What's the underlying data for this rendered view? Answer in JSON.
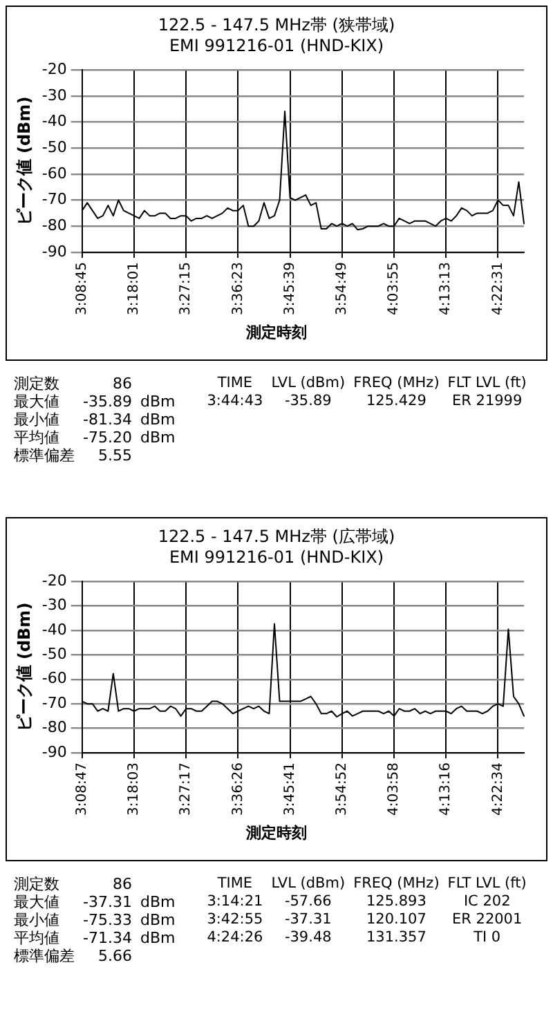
{
  "chart_data": [
    {
      "type": "line",
      "title": "122.5 - 147.5 MHz帯 (狭帯域)",
      "subtitle": "EMI 991216-01 (HND-KIX)",
      "xlabel": "測定時刻",
      "ylabel": "ピーク値 (dBm)",
      "categories": [
        "3:08:45",
        null,
        null,
        null,
        null,
        null,
        null,
        null,
        null,
        null,
        "3:18:01",
        null,
        null,
        null,
        null,
        null,
        null,
        null,
        null,
        null,
        "3:27:15",
        null,
        null,
        null,
        null,
        null,
        null,
        null,
        null,
        null,
        "3:36:23",
        null,
        null,
        null,
        null,
        null,
        null,
        null,
        null,
        null,
        "3:45:39",
        null,
        null,
        null,
        null,
        null,
        null,
        null,
        null,
        null,
        "3:54:49",
        null,
        null,
        null,
        null,
        null,
        null,
        null,
        null,
        null,
        "4:03:55",
        null,
        null,
        null,
        null,
        null,
        null,
        null,
        null,
        null,
        "4:13:13",
        null,
        null,
        null,
        null,
        null,
        null,
        null,
        null,
        null,
        "4:22:31",
        null,
        null,
        null,
        null,
        null
      ],
      "series": [
        {
          "color": "#000000",
          "values": [
            -74,
            -71,
            -74,
            -77,
            -76,
            -72,
            -76,
            -70,
            -74,
            -75,
            -76,
            -77,
            -74,
            -76,
            -76,
            -75,
            -75,
            -77,
            -77,
            -76,
            -76,
            -78,
            -77,
            -77,
            -76,
            -77,
            -76,
            -75,
            -73,
            -74,
            -74,
            -72,
            -80,
            -80,
            -78,
            -71,
            -77,
            -76,
            -70,
            -35.89,
            -69,
            -70,
            -69,
            -68,
            -72,
            -71,
            -81,
            -81,
            -79,
            -80,
            -79,
            -80,
            -79,
            -81.34,
            -81,
            -80,
            -80,
            -80,
            -79,
            -80,
            -80,
            -77,
            -78,
            -79,
            -78,
            -78,
            -78,
            -79,
            -80,
            -78,
            -77,
            -78,
            -76,
            -73,
            -74,
            -76,
            -75,
            -75,
            -75,
            -74,
            -70,
            -72,
            -72,
            -76,
            -63,
            -79
          ]
        }
      ],
      "ylim": [
        -90,
        -20
      ],
      "yticks": [
        -90,
        -80,
        -70,
        -60,
        -50,
        -40,
        -30,
        -20
      ],
      "grid": true,
      "legend": false,
      "marker": "none",
      "line_style": "solid",
      "annotations": [
        "測定数\t86",
        "最大値\t-35.89\tdBm",
        "最小値\t-81.34\tdBm",
        "平均値\t-75.20\tdBm",
        "標準偏差\t5.55",
        "TIME\tLVL (dBm)\tFREQ (MHz)\tFLT LVL (ft)",
        "3:44:43\t-35.89\t125.429\tER 21999"
      ]
    },
    {
      "type": "line",
      "title": "122.5 - 147.5 MHz帯 (広帯域)",
      "subtitle": "EMI 991216-01 (HND-KIX)",
      "xlabel": "測定時刻",
      "ylabel": "ピーク値 (dBm)",
      "categories": [
        "3:08:47",
        null,
        null,
        null,
        null,
        null,
        null,
        null,
        null,
        null,
        "3:18:03",
        null,
        null,
        null,
        null,
        null,
        null,
        null,
        null,
        null,
        "3:27:17",
        null,
        null,
        null,
        null,
        null,
        null,
        null,
        null,
        null,
        "3:36:26",
        null,
        null,
        null,
        null,
        null,
        null,
        null,
        null,
        null,
        "3:45:41",
        null,
        null,
        null,
        null,
        null,
        null,
        null,
        null,
        null,
        "3:54:52",
        null,
        null,
        null,
        null,
        null,
        null,
        null,
        null,
        null,
        "4:03:58",
        null,
        null,
        null,
        null,
        null,
        null,
        null,
        null,
        null,
        "4:13:16",
        null,
        null,
        null,
        null,
        null,
        null,
        null,
        null,
        null,
        "4:22:34",
        null,
        null,
        null,
        null,
        null
      ],
      "series": [
        {
          "color": "#000000",
          "values": [
            -69,
            -70,
            -70,
            -73,
            -72,
            -73,
            -57.66,
            -73,
            -72,
            -72,
            -73,
            -72,
            -72,
            -72,
            -71,
            -73,
            -73,
            -71,
            -72,
            -75,
            -72,
            -72,
            -73,
            -73,
            -71,
            -69,
            -69,
            -70,
            -72,
            -74,
            -73,
            -72,
            -71,
            -72,
            -71,
            -73,
            -74,
            -37.31,
            -69,
            -69,
            -69,
            -69,
            -69,
            -68,
            -67,
            -70,
            -74,
            -74,
            -73,
            -75.33,
            -74,
            -73,
            -75,
            -74,
            -73,
            -73,
            -73,
            -73,
            -74,
            -73,
            -75,
            -72,
            -73,
            -73,
            -72,
            -74,
            -73,
            -74,
            -73,
            -73,
            -73,
            -74,
            -72,
            -71,
            -73,
            -73,
            -73,
            -74,
            -73,
            -71,
            -70,
            -71,
            -39.48,
            -67,
            -70,
            -75
          ]
        }
      ],
      "ylim": [
        -90,
        -20
      ],
      "yticks": [
        -90,
        -80,
        -70,
        -60,
        -50,
        -40,
        -30,
        -20
      ],
      "grid": true,
      "legend": false,
      "marker": "none",
      "line_style": "solid",
      "annotations": [
        "測定数\t86",
        "最大値\t-37.31\tdBm",
        "最小値\t-75.33\tdBm",
        "平均値\t-71.34\tdBm",
        "標準偏差\t5.66",
        "TIME\tLVL (dBm)\tFREQ (MHz)\tFLT LVL (ft)",
        "3:14:21\t-57.66\t125.893\tIC 202",
        "3:42:55\t-37.31\t120.107\tER 22001",
        "4:24:26\t-39.48\t131.357\tTI 0"
      ]
    }
  ]
}
